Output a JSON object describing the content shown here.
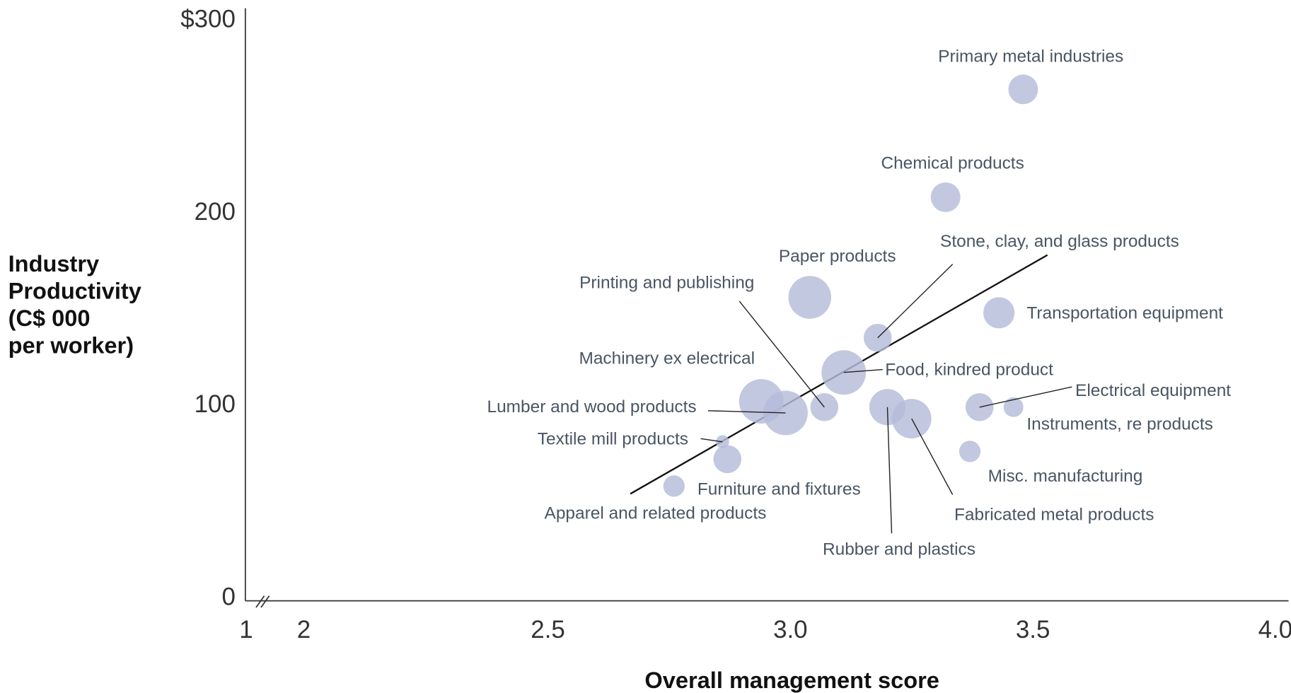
{
  "chart_data": {
    "type": "bubble",
    "xlabel": "Overall management score",
    "ylabel": [
      "Industry",
      "Productivity",
      "(C$ 000",
      "per worker)"
    ],
    "categories": [
      "Primary metal industries",
      "Chemical products",
      "Paper products",
      "Stone, clay, and glass products",
      "Transportation equipment",
      "Food, kindred product",
      "Machinery ex electrical",
      "Lumber and wood products",
      "Printing and publishing",
      "Rubber and plastics",
      "Fabricated metal products",
      "Electrical equipment",
      "Instruments, re products",
      "Misc. manufacturing",
      "Textile mill products",
      "Furniture and fixtures",
      "Apparel and related products"
    ],
    "x": [
      3.48,
      3.32,
      3.04,
      3.18,
      3.43,
      3.11,
      2.94,
      2.99,
      3.07,
      3.2,
      3.25,
      3.39,
      3.46,
      3.37,
      2.86,
      2.87,
      2.76
    ],
    "values": [
      263,
      207,
      155,
      134,
      147,
      116,
      101,
      95,
      98,
      98,
      92,
      98,
      98,
      75,
      80,
      71,
      57
    ],
    "sizes": [
      18,
      18,
      26,
      17,
      19,
      27,
      27,
      27,
      17,
      22,
      24,
      17,
      12,
      13,
      8,
      17,
      13
    ],
    "color": "#b4bcd9",
    "trendline": {
      "x": [
        2.67,
        3.53
      ],
      "y": [
        53,
        177
      ]
    },
    "xlim": [
      2,
      4
    ],
    "x_break_tick": 1,
    "xticks": [
      2,
      2.5,
      {
        "value": 3,
        "label": "3.0"
      },
      3.5,
      {
        "value": 4,
        "label": "4.0"
      }
    ],
    "ylim": [
      0,
      300
    ],
    "yticks": [
      0,
      100,
      200,
      {
        "value": 300,
        "label": "$300"
      }
    ]
  }
}
